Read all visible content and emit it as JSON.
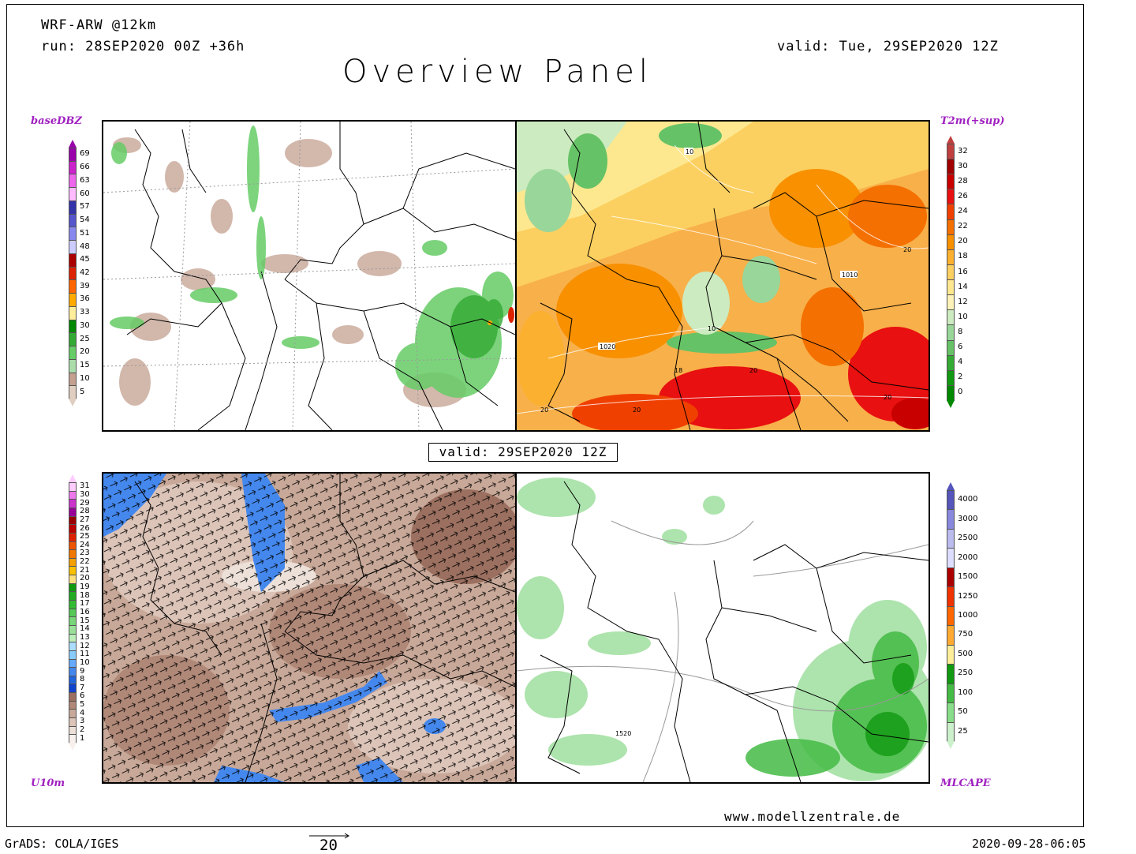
{
  "header": {
    "model": "WRF-ARW @12km",
    "run": "run: 28SEP2020 00Z +36h",
    "valid": "valid: Tue, 29SEP2020 12Z",
    "title": "Overview Panel"
  },
  "panels": {
    "top_left": {
      "label": "baseDBZ",
      "colorbar": {
        "labels": [
          "69",
          "66",
          "63",
          "60",
          "57",
          "54",
          "51",
          "48",
          "45",
          "42",
          "39",
          "36",
          "33",
          "30",
          "25",
          "20",
          "15",
          "10",
          "5"
        ],
        "colors": [
          "#9900aa",
          "#cc22cc",
          "#ee66ee",
          "#ffbbff",
          "#3333aa",
          "#5555cc",
          "#8888ee",
          "#ccccff",
          "#aa0000",
          "#dd2200",
          "#ff6600",
          "#ffaa00",
          "#ffee99",
          "#008800",
          "#33aa33",
          "#66cc66",
          "#aaddaa",
          "#c4a090",
          "#e0cfc0"
        ]
      }
    },
    "top_right": {
      "label": "T2m(+sup)",
      "colorbar": {
        "labels": [
          "32",
          "30",
          "28",
          "26",
          "24",
          "22",
          "20",
          "18",
          "16",
          "14",
          "12",
          "10",
          "8",
          "6",
          "4",
          "2",
          "0"
        ],
        "colors": [
          "#c04040",
          "#a00000",
          "#c80000",
          "#e81010",
          "#f04000",
          "#f47000",
          "#f89000",
          "#fbb030",
          "#fcd060",
          "#fde890",
          "#fdf3b8",
          "#ccebc0",
          "#99d699",
          "#66c266",
          "#33aa33",
          "#119911",
          "#008800"
        ]
      },
      "contour_labels": [
        "10",
        "1010",
        "1020",
        "10",
        "18",
        "20",
        "20",
        "20",
        "20",
        "20"
      ]
    },
    "bottom_left": {
      "label": "U10m",
      "colorbar": {
        "labels": [
          "31",
          "30",
          "29",
          "28",
          "27",
          "26",
          "25",
          "24",
          "23",
          "22",
          "21",
          "20",
          "19",
          "18",
          "17",
          "16",
          "15",
          "14",
          "13",
          "12",
          "11",
          "10",
          "9",
          "8",
          "7",
          "6",
          "5",
          "4",
          "3",
          "2",
          "1"
        ],
        "colors": [
          "#ffccff",
          "#ee77ee",
          "#cc33cc",
          "#990099",
          "#990000",
          "#bb0000",
          "#dd2200",
          "#ee5500",
          "#f07700",
          "#f4a000",
          "#f8c000",
          "#fce080",
          "#119911",
          "#22aa22",
          "#33bb33",
          "#55c855",
          "#77d677",
          "#99e099",
          "#bbeebb",
          "#aaddff",
          "#88ccff",
          "#66aaff",
          "#4488ee",
          "#2266dd",
          "#1144cc",
          "#9c7060",
          "#b08878",
          "#c8a898",
          "#dcc4b8",
          "#ece0d8",
          "#f7f0ec"
        ]
      }
    },
    "bottom_right": {
      "label": "MLCAPE",
      "colorbar": {
        "labels": [
          "4000",
          "3000",
          "2500",
          "2000",
          "1500",
          "1250",
          "1000",
          "750",
          "500",
          "250",
          "100",
          "50",
          "25"
        ],
        "colors": [
          "#5555bb",
          "#8888dd",
          "#bbbbee",
          "#ddddff",
          "#aa0000",
          "#ee3300",
          "#ff6600",
          "#ffaa33",
          "#ffee99",
          "#119911",
          "#44bb44",
          "#88dd88",
          "#ccf0cc"
        ]
      },
      "contour_labels": [
        "1520"
      ]
    }
  },
  "center_valid": "valid: 29SEP2020 12Z",
  "footer": {
    "grads": "GrADS: COLA/IGES",
    "vector_scale": "20",
    "timestamp": "2020-09-28-06:05",
    "website": "www.modellzentrale.de"
  }
}
